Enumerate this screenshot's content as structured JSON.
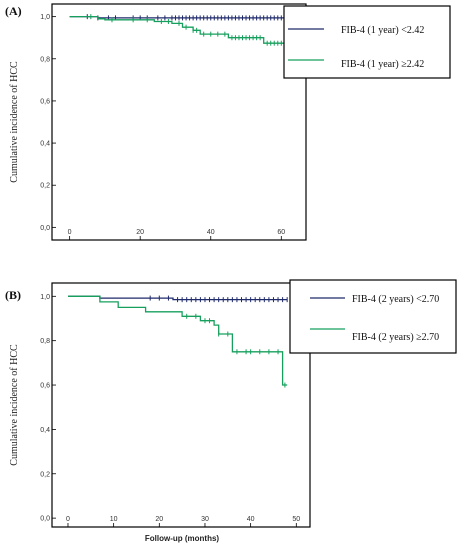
{
  "chart_data": [
    {
      "type": "line",
      "panel": "(A)",
      "ylabel": "Cumulative incidence of HCC",
      "xlabel": "",
      "xlim": [
        -5,
        67
      ],
      "ylim": [
        -0.06,
        1.06
      ],
      "xticks": [
        0,
        20,
        40,
        60
      ],
      "yticks": [
        0.0,
        0.2,
        0.4,
        0.6,
        0.8,
        1.0
      ],
      "ytick_labels": [
        "0,0",
        "0,2",
        "0,4",
        "0,6",
        "0,8",
        "1,0"
      ],
      "series": [
        {
          "name": "FIB-4 (1 year) <2.42",
          "color": "#1f2a6b",
          "steps": [
            [
              0,
              1.0
            ],
            [
              8,
              0.994
            ],
            [
              62.5,
              0.994
            ]
          ],
          "censor_x": [
            5,
            8,
            11,
            13,
            18,
            20,
            22,
            25,
            27,
            29,
            30,
            31,
            32,
            33,
            34,
            35,
            36,
            37,
            38,
            39,
            40,
            41,
            42,
            43,
            44,
            45,
            46,
            47,
            48,
            49,
            50,
            51,
            52,
            53,
            54,
            55,
            56,
            57,
            58,
            59,
            60,
            61,
            62
          ]
        },
        {
          "name": "FIB-4 (1 year) ≥2.42",
          "color": "#17a05d",
          "steps": [
            [
              0,
              1.0
            ],
            [
              8,
              0.99
            ],
            [
              10,
              0.985
            ],
            [
              24,
              0.977
            ],
            [
              29,
              0.968
            ],
            [
              32,
              0.95
            ],
            [
              35,
              0.935
            ],
            [
              37,
              0.917
            ],
            [
              45,
              0.9
            ],
            [
              55,
              0.874
            ],
            [
              62.5,
              0.874
            ]
          ],
          "censor_x": [
            6,
            12,
            18,
            22,
            26,
            28,
            31,
            33,
            35,
            36,
            38,
            40,
            42,
            44,
            46,
            47,
            48,
            49,
            50,
            51,
            52,
            53,
            54,
            56,
            57,
            58,
            59,
            60,
            61,
            62
          ]
        }
      ],
      "legend_position": "top-right"
    },
    {
      "type": "line",
      "panel": "(B)",
      "ylabel": "Cumulative incidence of HCC",
      "xlabel": "Follow-up (months)",
      "xlim": [
        -3.5,
        53
      ],
      "ylim": [
        -0.04,
        1.06
      ],
      "xticks": [
        0,
        10,
        20,
        30,
        40,
        50
      ],
      "yticks": [
        0.0,
        0.2,
        0.4,
        0.6,
        0.8,
        1.0
      ],
      "ytick_labels": [
        "0,0",
        "0,2",
        "0,4",
        "0,6",
        "0,8",
        "1,0"
      ],
      "series": [
        {
          "name": "FIB-4 (2 years) <2.70",
          "color": "#1f2a6b",
          "steps": [
            [
              0,
              1.0
            ],
            [
              7,
              0.992
            ],
            [
              23,
              0.985
            ],
            [
              48,
              0.985
            ]
          ],
          "censor_x": [
            18,
            20,
            22,
            24,
            25,
            26,
            27,
            28,
            29,
            30,
            31,
            32,
            33,
            34,
            35,
            36,
            37,
            38,
            39,
            40,
            41,
            42,
            43,
            44,
            45,
            46,
            47,
            48
          ]
        },
        {
          "name": "FIB-4 (2 years) ≥2.70",
          "color": "#17a05d",
          "steps": [
            [
              0,
              1.0
            ],
            [
              7,
              0.975
            ],
            [
              11,
              0.95
            ],
            [
              17,
              0.93
            ],
            [
              25,
              0.91
            ],
            [
              29,
              0.89
            ],
            [
              32,
              0.87
            ],
            [
              33,
              0.83
            ],
            [
              36,
              0.75
            ],
            [
              47,
              0.6
            ],
            [
              48,
              0.6
            ]
          ],
          "censor_x": [
            26,
            28,
            30,
            31,
            33,
            35,
            37,
            39,
            40,
            42,
            44,
            46,
            47.5
          ]
        }
      ],
      "legend_position": "top-right"
    }
  ]
}
